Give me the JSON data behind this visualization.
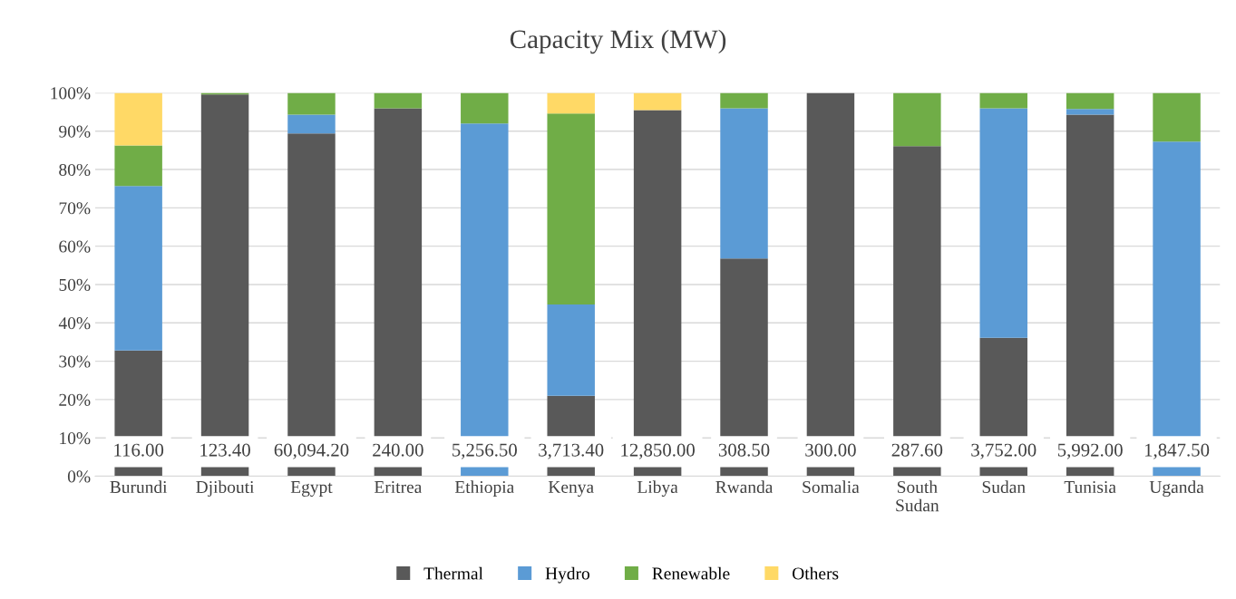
{
  "chart_data": {
    "type": "bar",
    "title": "Capacity Mix (MW)",
    "stacked": true,
    "categories": [
      "Burundi",
      "Djibouti",
      "Egypt",
      "Eritrea",
      "Ethiopia",
      "Kenya",
      "Libya",
      "Rwanda",
      "Somalia",
      "South\nSudan",
      "Sudan",
      "Tunisia",
      "Uganda"
    ],
    "series": [
      {
        "name": "Thermal",
        "color": "#595959",
        "values": [
          32.8,
          99.6,
          89.4,
          96.0,
          0,
          21.0,
          95.5,
          56.8,
          100,
          86.1,
          36.1,
          94.3,
          null
        ]
      },
      {
        "name": "Hydro",
        "color": "#5b9bd5",
        "values": [
          42.9,
          0,
          4.9,
          0,
          92.0,
          23.8,
          0,
          39.2,
          0,
          0,
          59.9,
          1.5,
          87.3
        ]
      },
      {
        "name": "Renewable",
        "color": "#70ad47",
        "values": [
          10.6,
          0.4,
          5.7,
          4.0,
          8.0,
          49.8,
          0,
          4.0,
          0,
          13.9,
          4.0,
          4.2,
          12.7
        ]
      },
      {
        "name": "Others",
        "color": "#ffd966",
        "values": [
          13.7,
          0,
          0,
          0,
          0,
          5.4,
          4.5,
          0,
          0,
          0,
          0,
          0,
          0
        ]
      }
    ],
    "annotations": [
      "116.00",
      "123.40",
      "60,094.20",
      "240.00",
      "5,256.50",
      "3,713.40",
      "12,850.00",
      "308.50",
      "300.00",
      "287.60",
      "3,752.00",
      "5,992.00",
      "1,847.50"
    ],
    "ylim": [
      0,
      100
    ],
    "yticks": [
      {
        "value": 0,
        "label": "0%"
      },
      {
        "value": 10,
        "label": "10%"
      },
      {
        "value": 20,
        "label": "20%"
      },
      {
        "value": 30,
        "label": "30%"
      },
      {
        "value": 40,
        "label": "40%"
      },
      {
        "value": 50,
        "label": "50%"
      },
      {
        "value": 60,
        "label": "60%"
      },
      {
        "value": 70,
        "label": "70%"
      },
      {
        "value": 80,
        "label": "80%"
      },
      {
        "value": 90,
        "label": "90%"
      },
      {
        "value": 100,
        "label": "100%"
      }
    ],
    "grid": "y",
    "legend": "bottom"
  }
}
